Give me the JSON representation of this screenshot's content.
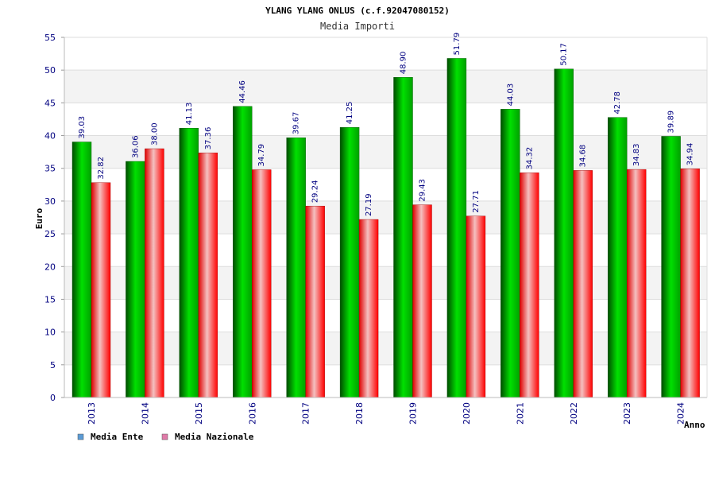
{
  "chart_data": {
    "type": "bar",
    "title": "YLANG YLANG ONLUS (c.f.92047080152)",
    "subtitle": "Media Importi",
    "ylabel": "Euro",
    "xlabel": "Anno",
    "ylim": [
      0,
      55
    ],
    "ytick_step": 5,
    "categories": [
      "2013",
      "2014",
      "2015",
      "2016",
      "2017",
      "2018",
      "2019",
      "2020",
      "2021",
      "2022",
      "2023",
      "2024"
    ],
    "series": [
      {
        "name": "Media Ente",
        "color": "#00cc00",
        "legend_color": "#5b9bd5",
        "values": [
          39.03,
          36.06,
          41.13,
          44.46,
          39.67,
          41.25,
          48.9,
          51.79,
          44.03,
          50.17,
          42.78,
          39.89
        ],
        "labels": [
          "39.03",
          "36.06",
          "41.13",
          "44.46",
          "39.67",
          "41.25",
          "48.90",
          "51.79",
          "44.03",
          "50.17",
          "42.78",
          "39.89"
        ]
      },
      {
        "name": "Media Nazionale",
        "color": "#ff0000",
        "legend_color": "#e07aa8",
        "values": [
          32.82,
          38.0,
          37.36,
          34.79,
          29.24,
          27.19,
          29.43,
          27.71,
          34.32,
          34.68,
          34.83,
          34.94
        ],
        "labels": [
          "32.82",
          "38.00",
          "37.36",
          "34.79",
          "29.24",
          "27.19",
          "29.43",
          "27.71",
          "34.32",
          "34.68",
          "34.83",
          "34.94"
        ]
      }
    ],
    "grid": true,
    "legend_position": "bottom-left"
  }
}
